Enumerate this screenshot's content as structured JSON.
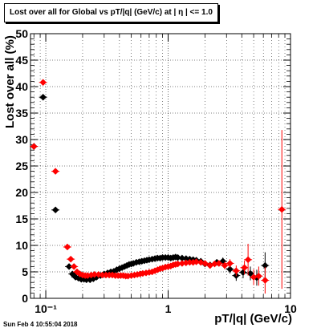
{
  "chart_data": {
    "type": "scatter",
    "title": "Lost over all for Global vs pT/|q| (GeV/c) at |  η | <= 1.0",
    "xlabel": "pT/|q| (GeV/c)",
    "ylabel": "Lost over all (%)",
    "x_scale": "log",
    "xlim": [
      0.075,
      10
    ],
    "ylim": [
      0,
      50
    ],
    "y_ticks": [
      0,
      5,
      10,
      15,
      20,
      25,
      30,
      35,
      40,
      45,
      50
    ],
    "x_tick_labels": [
      {
        "value": 0.1,
        "label": "10⁻¹"
      },
      {
        "value": 1,
        "label": "1"
      },
      {
        "value": 10,
        "label": "10"
      }
    ],
    "grid": true,
    "series": [
      {
        "color": "#000000",
        "points": [
          [
            0.08,
            28.7
          ],
          [
            0.095,
            38.0
          ],
          [
            0.12,
            16.7
          ],
          [
            0.155,
            6.0
          ],
          [
            0.165,
            4.6
          ],
          [
            0.175,
            4.0
          ],
          [
            0.185,
            3.8
          ],
          [
            0.195,
            3.6
          ],
          [
            0.205,
            3.6
          ],
          [
            0.215,
            3.5
          ],
          [
            0.23,
            3.5
          ],
          [
            0.245,
            3.7
          ],
          [
            0.26,
            4.0
          ],
          [
            0.28,
            4.3
          ],
          [
            0.3,
            4.6
          ],
          [
            0.32,
            4.8
          ],
          [
            0.34,
            5.0
          ],
          [
            0.36,
            5.1
          ],
          [
            0.38,
            5.4
          ],
          [
            0.4,
            5.6
          ],
          [
            0.42,
            5.8
          ],
          [
            0.44,
            6.0
          ],
          [
            0.46,
            6.2
          ],
          [
            0.48,
            6.4
          ],
          [
            0.5,
            6.5
          ],
          [
            0.52,
            6.6
          ],
          [
            0.55,
            6.8
          ],
          [
            0.58,
            6.9
          ],
          [
            0.61,
            7.0
          ],
          [
            0.64,
            7.1
          ],
          [
            0.67,
            7.2
          ],
          [
            0.7,
            7.3
          ],
          [
            0.74,
            7.4
          ],
          [
            0.78,
            7.5
          ],
          [
            0.82,
            7.6
          ],
          [
            0.86,
            7.6
          ],
          [
            0.9,
            7.7
          ],
          [
            0.95,
            7.7
          ],
          [
            1.0,
            7.7
          ],
          [
            1.05,
            7.6
          ],
          [
            1.1,
            7.7
          ],
          [
            1.15,
            7.8
          ],
          [
            1.2,
            7.7
          ],
          [
            1.3,
            7.6
          ],
          [
            1.4,
            7.5
          ],
          [
            1.5,
            7.4
          ],
          [
            1.6,
            7.3
          ],
          [
            1.7,
            7.2
          ],
          [
            1.85,
            7.0
          ],
          [
            2.0,
            6.5
          ],
          [
            2.2,
            6.3
          ],
          [
            2.5,
            6.8
          ],
          [
            2.8,
            7.0
          ],
          [
            3.2,
            5.5
          ],
          [
            3.6,
            4.3
          ],
          [
            4.1,
            4.9
          ],
          [
            4.7,
            4.7
          ],
          [
            5.3,
            3.9
          ],
          [
            6.2,
            6.2
          ]
        ],
        "errors": [
          0.5,
          0.5,
          0.5,
          0.4,
          0.3,
          0.3,
          0.3,
          0.2,
          0.2,
          0.2,
          0.2,
          0.2,
          0.2,
          0.2,
          0.2,
          0.2,
          0.2,
          0.2,
          0.2,
          0.2,
          0.2,
          0.2,
          0.2,
          0.2,
          0.2,
          0.2,
          0.2,
          0.2,
          0.2,
          0.2,
          0.2,
          0.2,
          0.2,
          0.2,
          0.2,
          0.2,
          0.2,
          0.2,
          0.3,
          0.3,
          0.3,
          0.3,
          0.3,
          0.3,
          0.3,
          0.3,
          0.4,
          0.4,
          0.4,
          0.5,
          0.5,
          0.6,
          0.7,
          0.8,
          1.0,
          1.1,
          1.3,
          1.5,
          2.5
        ]
      },
      {
        "color": "#ff0000",
        "points": [
          [
            0.08,
            28.7
          ],
          [
            0.095,
            40.8
          ],
          [
            0.12,
            24.0
          ],
          [
            0.15,
            9.7
          ],
          [
            0.16,
            7.4
          ],
          [
            0.17,
            6.0
          ],
          [
            0.18,
            5.0
          ],
          [
            0.19,
            4.6
          ],
          [
            0.2,
            4.4
          ],
          [
            0.21,
            4.3
          ],
          [
            0.22,
            4.3
          ],
          [
            0.235,
            4.4
          ],
          [
            0.25,
            4.5
          ],
          [
            0.27,
            4.5
          ],
          [
            0.29,
            4.4
          ],
          [
            0.31,
            4.4
          ],
          [
            0.33,
            4.4
          ],
          [
            0.35,
            4.4
          ],
          [
            0.37,
            4.3
          ],
          [
            0.39,
            4.3
          ],
          [
            0.41,
            4.3
          ],
          [
            0.43,
            4.3
          ],
          [
            0.45,
            4.2
          ],
          [
            0.47,
            4.2
          ],
          [
            0.5,
            4.3
          ],
          [
            0.53,
            4.4
          ],
          [
            0.56,
            4.5
          ],
          [
            0.59,
            4.6
          ],
          [
            0.62,
            4.7
          ],
          [
            0.66,
            4.8
          ],
          [
            0.7,
            4.9
          ],
          [
            0.74,
            5.0
          ],
          [
            0.78,
            5.2
          ],
          [
            0.82,
            5.4
          ],
          [
            0.86,
            5.6
          ],
          [
            0.9,
            5.7
          ],
          [
            0.95,
            5.9
          ],
          [
            1.0,
            6.0
          ],
          [
            1.05,
            6.1
          ],
          [
            1.1,
            6.3
          ],
          [
            1.15,
            6.4
          ],
          [
            1.2,
            6.5
          ],
          [
            1.3,
            6.6
          ],
          [
            1.4,
            6.7
          ],
          [
            1.5,
            6.8
          ],
          [
            1.6,
            6.8
          ],
          [
            1.7,
            6.9
          ],
          [
            1.85,
            6.8
          ],
          [
            2.0,
            6.6
          ],
          [
            2.2,
            6.2
          ],
          [
            2.4,
            6.5
          ],
          [
            2.6,
            6.6
          ],
          [
            2.9,
            6.2
          ],
          [
            3.2,
            6.6
          ],
          [
            3.6,
            5.2
          ],
          [
            4.2,
            5.8
          ],
          [
            4.5,
            7.3
          ],
          [
            5.0,
            4.0
          ],
          [
            5.5,
            4.2
          ],
          [
            6.2,
            3.4
          ],
          [
            8.5,
            16.8
          ]
        ],
        "errors": [
          0.5,
          0.5,
          0.5,
          0.4,
          0.3,
          0.3,
          0.3,
          0.2,
          0.2,
          0.2,
          0.2,
          0.2,
          0.2,
          0.2,
          0.2,
          0.2,
          0.2,
          0.2,
          0.2,
          0.2,
          0.2,
          0.2,
          0.2,
          0.2,
          0.2,
          0.2,
          0.2,
          0.2,
          0.2,
          0.2,
          0.2,
          0.2,
          0.2,
          0.2,
          0.2,
          0.2,
          0.2,
          0.3,
          0.3,
          0.3,
          0.3,
          0.3,
          0.3,
          0.3,
          0.3,
          0.4,
          0.4,
          0.4,
          0.5,
          0.5,
          0.6,
          0.6,
          0.7,
          0.8,
          1.0,
          1.3,
          3.0,
          1.5,
          1.8,
          2.5,
          15.0
        ]
      }
    ]
  },
  "footer": {
    "datestamp": "Sun Feb  4 10:55:04 2018"
  }
}
